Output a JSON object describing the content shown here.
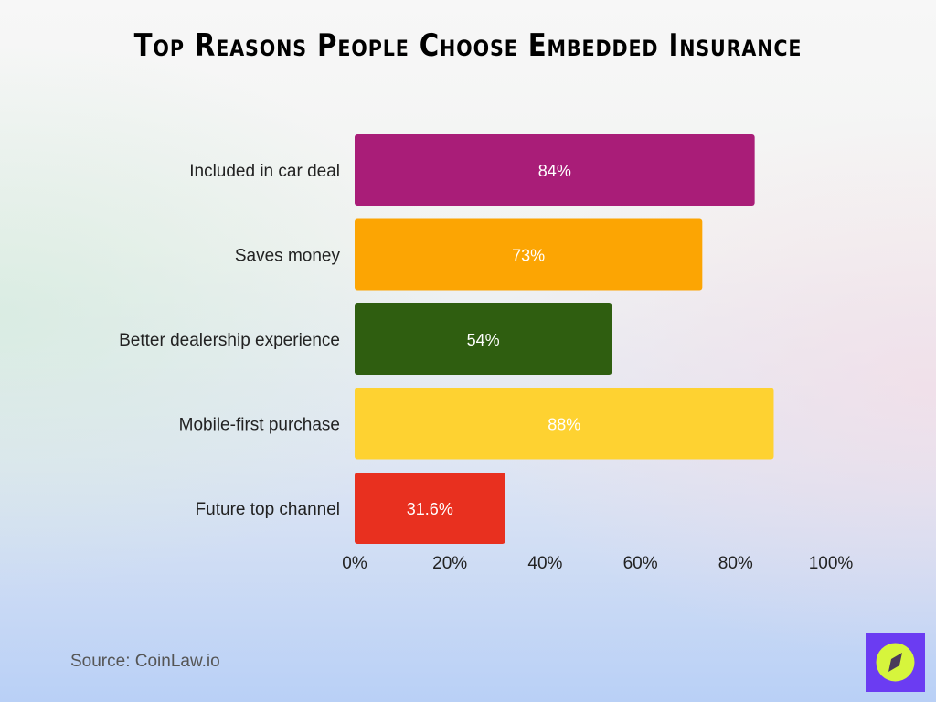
{
  "chart_data": {
    "type": "bar",
    "orientation": "horizontal",
    "title": "Top Reasons People Choose Embedded Insurance",
    "categories": [
      "Included in car deal",
      "Saves money",
      "Better dealership experience",
      "Mobile-first purchase",
      "Future top channel"
    ],
    "values": [
      84,
      73,
      54,
      88,
      31.6
    ],
    "data_labels": [
      "84%",
      "73%",
      "54%",
      "88%",
      "31.6%"
    ],
    "colors": [
      "#a91d78",
      "#fca503",
      "#2f5e10",
      "#fed231",
      "#e8301f"
    ],
    "xlim": [
      0,
      100
    ],
    "xticks": [
      "0%",
      "20%",
      "40%",
      "60%",
      "80%",
      "100%"
    ],
    "grid": false,
    "xlabel": "",
    "ylabel": ""
  },
  "source": "Source: CoinLaw.io",
  "logo": {
    "icon": "compass-icon",
    "colors": {
      "background": "#6b3cf2",
      "circle": "#d6f53c"
    }
  }
}
